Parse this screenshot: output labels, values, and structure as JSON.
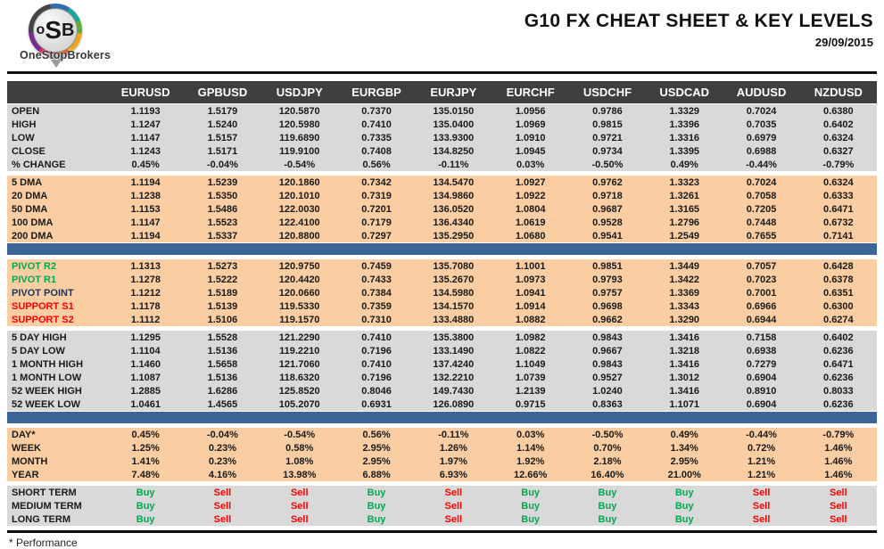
{
  "header": {
    "title": "G10 FX CHEAT SHEET & KEY LEVELS",
    "date": "29/09/2015"
  },
  "logo": {
    "letter1": "o",
    "letter2": "S",
    "letter3": "B",
    "name": "OneStopBrokers"
  },
  "colors": {
    "header_bg": "#3F3F3F",
    "gray_bg": "#D9D9D9",
    "peach_bg": "#FACDA2",
    "divider_blue": "#3C6595",
    "green": "#00A950",
    "red": "#FF0000",
    "navy": "#17375E"
  },
  "table": {
    "pairs": [
      "EURUSD",
      "GPBUSD",
      "USDJPY",
      "EURGBP",
      "EURJPY",
      "EURCHF",
      "USDCHF",
      "USDCAD",
      "AUDUSD",
      "NZDUSD"
    ],
    "sections": [
      {
        "id": "ohlc",
        "style": "gray",
        "divider_after": false,
        "rows": [
          {
            "label": "OPEN",
            "values": [
              "1.1193",
              "1.5179",
              "120.5870",
              "0.7370",
              "135.0150",
              "1.0956",
              "0.9786",
              "1.3329",
              "0.7024",
              "0.6380"
            ]
          },
          {
            "label": "HIGH",
            "values": [
              "1.1247",
              "1.5240",
              "120.5980",
              "0.7410",
              "135.0400",
              "1.0969",
              "0.9815",
              "1.3396",
              "0.7035",
              "0.6402"
            ]
          },
          {
            "label": "LOW",
            "values": [
              "1.1147",
              "1.5157",
              "119.6890",
              "0.7335",
              "133.9300",
              "1.0910",
              "0.9721",
              "1.3316",
              "0.6979",
              "0.6324"
            ]
          },
          {
            "label": "CLOSE",
            "values": [
              "1.1243",
              "1.5171",
              "119.9100",
              "0.7408",
              "134.8250",
              "1.0945",
              "0.9734",
              "1.3395",
              "0.6988",
              "0.6327"
            ]
          },
          {
            "label": "% CHANGE",
            "values": [
              "0.45%",
              "-0.04%",
              "-0.54%",
              "0.56%",
              "-0.11%",
              "0.03%",
              "-0.50%",
              "0.49%",
              "-0.44%",
              "-0.79%"
            ]
          }
        ]
      },
      {
        "id": "dma",
        "style": "peach",
        "divider_after": true,
        "rows": [
          {
            "label": "5 DMA",
            "values": [
              "1.1194",
              "1.5239",
              "120.1860",
              "0.7342",
              "134.5470",
              "1.0927",
              "0.9762",
              "1.3323",
              "0.7024",
              "0.6324"
            ]
          },
          {
            "label": "20 DMA",
            "values": [
              "1.1238",
              "1.5350",
              "120.1010",
              "0.7319",
              "134.9860",
              "1.0922",
              "0.9718",
              "1.3261",
              "0.7058",
              "0.6333"
            ]
          },
          {
            "label": "50 DMA",
            "values": [
              "1.1153",
              "1.5486",
              "122.0030",
              "0.7201",
              "136.0520",
              "1.0804",
              "0.9687",
              "1.3165",
              "0.7205",
              "0.6471"
            ]
          },
          {
            "label": "100 DMA",
            "values": [
              "1.1147",
              "1.5523",
              "122.4100",
              "0.7179",
              "136.4340",
              "1.0619",
              "0.9528",
              "1.2796",
              "0.7448",
              "0.6732"
            ]
          },
          {
            "label": "200 DMA",
            "values": [
              "1.1194",
              "1.5337",
              "120.8800",
              "0.7297",
              "135.2950",
              "1.0680",
              "0.9541",
              "1.2549",
              "0.7655",
              "0.7141"
            ]
          }
        ]
      },
      {
        "id": "pivots",
        "style": "peach",
        "divider_after": false,
        "rows": [
          {
            "label": "PIVOT R2",
            "label_style": "green",
            "values": [
              "1.1313",
              "1.5273",
              "120.9750",
              "0.7459",
              "135.7080",
              "1.1001",
              "0.9851",
              "1.3449",
              "0.7057",
              "0.6428"
            ]
          },
          {
            "label": "PIVOT R1",
            "label_style": "green",
            "values": [
              "1.1278",
              "1.5222",
              "120.4420",
              "0.7433",
              "135.2670",
              "1.0973",
              "0.9793",
              "1.3422",
              "0.7023",
              "0.6378"
            ]
          },
          {
            "label": "PIVOT POINT",
            "label_style": "navy",
            "values": [
              "1.1212",
              "1.5189",
              "120.0660",
              "0.7384",
              "134.5980",
              "1.0941",
              "0.9757",
              "1.3369",
              "0.7001",
              "0.6351"
            ]
          },
          {
            "label": "SUPPORT S1",
            "label_style": "red",
            "values": [
              "1.1178",
              "1.5139",
              "119.5330",
              "0.7359",
              "134.1570",
              "1.0914",
              "0.9698",
              "1.3343",
              "0.6966",
              "0.6300"
            ]
          },
          {
            "label": "SUPPORT S2",
            "label_style": "red",
            "values": [
              "1.1112",
              "1.5106",
              "119.1570",
              "0.7310",
              "133.4880",
              "1.0882",
              "0.9662",
              "1.3290",
              "0.6944",
              "0.6274"
            ]
          }
        ]
      },
      {
        "id": "ranges",
        "style": "gray",
        "divider_after": true,
        "rows": [
          {
            "label": "5 DAY HIGH",
            "values": [
              "1.1295",
              "1.5528",
              "121.2290",
              "0.7410",
              "135.3800",
              "1.0982",
              "0.9843",
              "1.3416",
              "0.7158",
              "0.6402"
            ]
          },
          {
            "label": "5 DAY LOW",
            "values": [
              "1.1104",
              "1.5136",
              "119.2210",
              "0.7196",
              "133.1490",
              "1.0822",
              "0.9667",
              "1.3218",
              "0.6938",
              "0.6236"
            ]
          },
          {
            "label": "1 MONTH HIGH",
            "values": [
              "1.1460",
              "1.5658",
              "121.7060",
              "0.7410",
              "137.4240",
              "1.1049",
              "0.9843",
              "1.3416",
              "0.7279",
              "0.6471"
            ]
          },
          {
            "label": "1 MONTH LOW",
            "values": [
              "1.1087",
              "1.5136",
              "118.6320",
              "0.7196",
              "132.2210",
              "1.0739",
              "0.9527",
              "1.3012",
              "0.6904",
              "0.6236"
            ]
          },
          {
            "label": "52 WEEK HIGH",
            "values": [
              "1.2885",
              "1.6286",
              "125.8520",
              "0.8046",
              "149.7430",
              "1.2139",
              "1.0240",
              "1.3416",
              "0.8910",
              "0.8033"
            ]
          },
          {
            "label": "52 WEEK LOW",
            "values": [
              "1.0461",
              "1.4565",
              "105.2070",
              "0.6931",
              "126.0890",
              "0.9715",
              "0.8363",
              "1.1071",
              "0.6904",
              "0.6236"
            ]
          }
        ]
      },
      {
        "id": "performance",
        "style": "peach",
        "divider_after": false,
        "rows": [
          {
            "label": "DAY*",
            "values": [
              "0.45%",
              "-0.04%",
              "-0.54%",
              "0.56%",
              "-0.11%",
              "0.03%",
              "-0.50%",
              "0.49%",
              "-0.44%",
              "-0.79%"
            ]
          },
          {
            "label": "WEEK",
            "values": [
              "1.25%",
              "0.23%",
              "0.58%",
              "2.95%",
              "1.26%",
              "1.14%",
              "0.70%",
              "1.34%",
              "0.72%",
              "1.46%"
            ]
          },
          {
            "label": "MONTH",
            "values": [
              "1.41%",
              "0.23%",
              "1.08%",
              "2.95%",
              "1.97%",
              "1.92%",
              "2.18%",
              "2.95%",
              "1.21%",
              "1.46%"
            ]
          },
          {
            "label": "YEAR",
            "values": [
              "7.48%",
              "4.16%",
              "13.98%",
              "6.88%",
              "6.93%",
              "12.66%",
              "16.40%",
              "21.00%",
              "1.21%",
              "1.46%"
            ]
          }
        ]
      },
      {
        "id": "signals",
        "style": "gray",
        "divider_after": false,
        "rows": [
          {
            "label": "SHORT TERM",
            "values": [
              "Buy",
              "Sell",
              "Sell",
              "Buy",
              "Sell",
              "Buy",
              "Buy",
              "Buy",
              "Sell",
              "Sell"
            ]
          },
          {
            "label": "MEDIUM TERM",
            "values": [
              "Buy",
              "Sell",
              "Sell",
              "Buy",
              "Sell",
              "Buy",
              "Buy",
              "Buy",
              "Sell",
              "Sell"
            ]
          },
          {
            "label": "LONG TERM",
            "values": [
              "Buy",
              "Sell",
              "Sell",
              "Buy",
              "Sell",
              "Buy",
              "Buy",
              "Buy",
              "Sell",
              "Sell"
            ]
          }
        ]
      }
    ]
  },
  "footnote": "* Performance"
}
